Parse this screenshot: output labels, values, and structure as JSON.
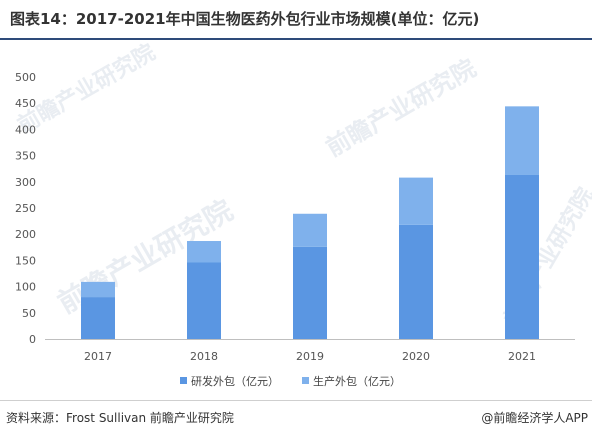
{
  "title": "图表14：2017-2021年中国生物医药外包行业市场规模(单位：亿元)",
  "source": "资料来源：Frost Sullivan 前瞻产业研究院",
  "brand": "@前瞻经济学人APP",
  "watermark": "前瞻产业研究院",
  "colors": {
    "rd": "#5a96e2",
    "prod": "#7fb1ec",
    "axis": "#bfbfbf",
    "watermark": "#e9edf2"
  },
  "chart_data": {
    "type": "bar",
    "stacked": true,
    "categories": [
      "2017",
      "2018",
      "2019",
      "2020",
      "2021"
    ],
    "series": [
      {
        "name": "研发外包（亿元）",
        "values": [
          80,
          146,
          176,
          218,
          313
        ]
      },
      {
        "name": "生产外包（亿元）",
        "values": [
          29,
          41,
          63,
          90,
          131
        ]
      }
    ],
    "ylim": [
      0,
      500
    ],
    "yticks": [
      0,
      50,
      100,
      150,
      200,
      250,
      300,
      350,
      400,
      450,
      500
    ],
    "grid": false,
    "legend": "bottom"
  }
}
